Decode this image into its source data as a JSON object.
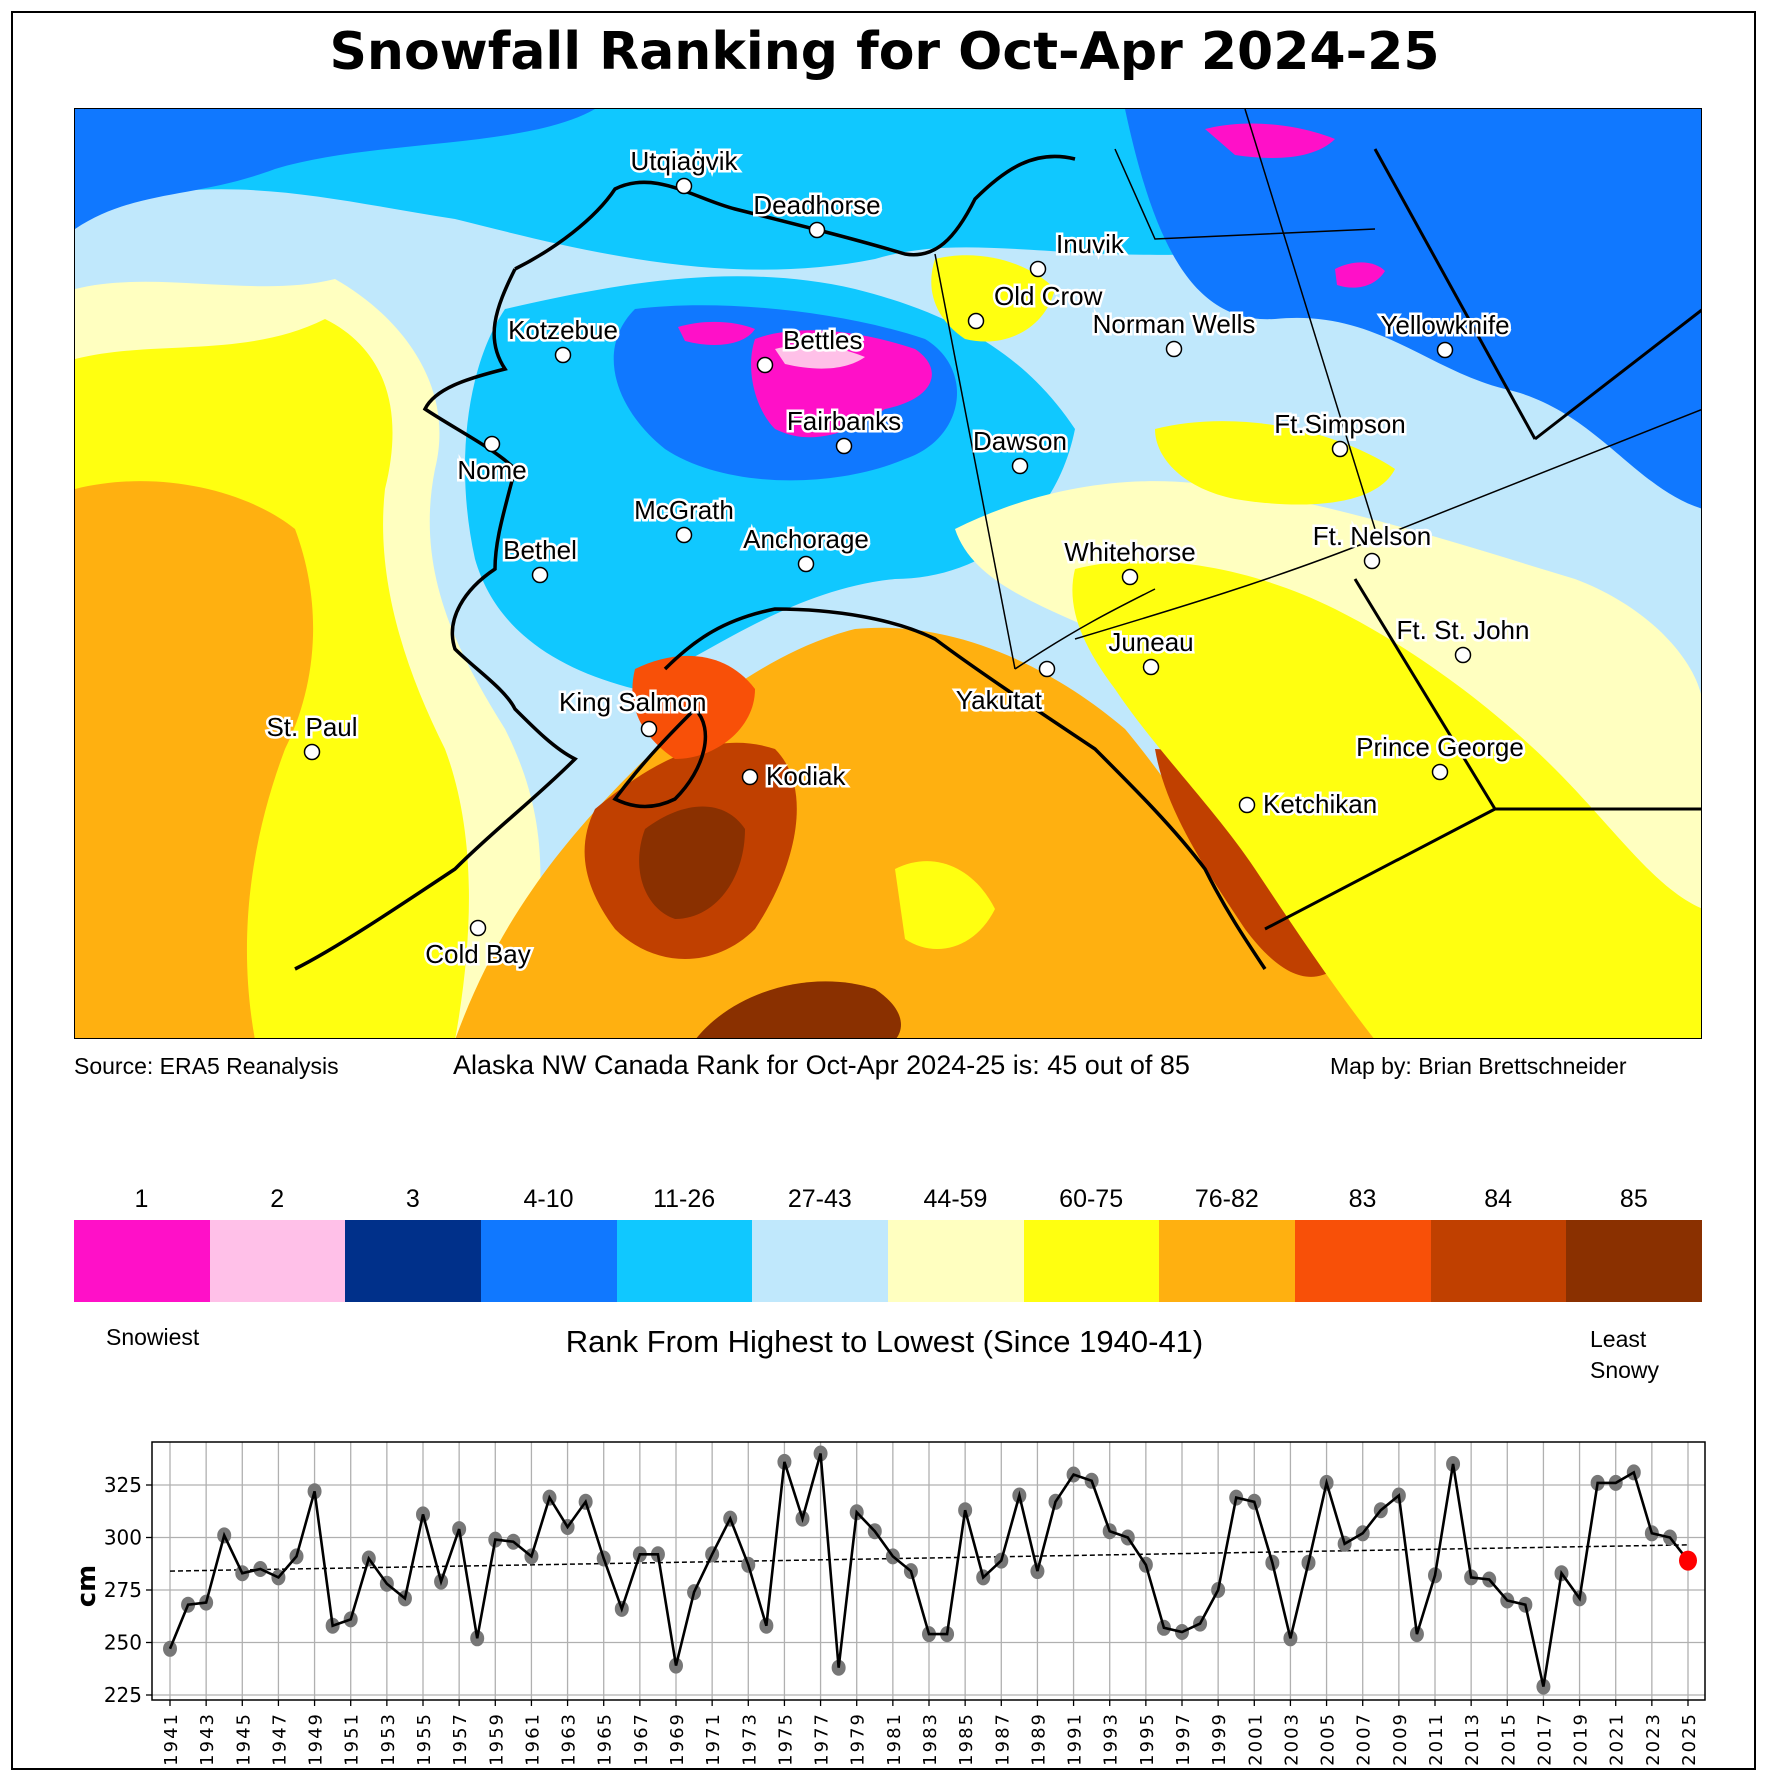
{
  "title": "Snowfall Ranking for Oct-Apr 2024-25",
  "map": {
    "cities": [
      {
        "name": "Utqiaġvik"
      },
      {
        "name": "Deadhorse"
      },
      {
        "name": "Inuvik"
      },
      {
        "name": "Kotzebue"
      },
      {
        "name": "Bettles"
      },
      {
        "name": "Old Crow"
      },
      {
        "name": "Norman Wells"
      },
      {
        "name": "Yellowknife"
      },
      {
        "name": "Fairbanks"
      },
      {
        "name": "Nome"
      },
      {
        "name": "Dawson"
      },
      {
        "name": "Ft.Simpson"
      },
      {
        "name": "McGrath"
      },
      {
        "name": "Whitehorse"
      },
      {
        "name": "Ft. Nelson"
      },
      {
        "name": "Bethel"
      },
      {
        "name": "Anchorage"
      },
      {
        "name": "Ft. St. John"
      },
      {
        "name": "Juneau"
      },
      {
        "name": "Yakutat"
      },
      {
        "name": "King Salmon"
      },
      {
        "name": "St. Paul"
      },
      {
        "name": "Kodiak"
      },
      {
        "name": "Prince George"
      },
      {
        "name": "Ketchikan"
      },
      {
        "name": "Cold Bay"
      }
    ]
  },
  "footer": {
    "source": "Source: ERA5 Reanalysis",
    "rank_text": "Alaska NW Canada Rank for Oct-Apr 2024-25 is: 45 out of 85",
    "map_by": "Map by: Brian Brettschneider"
  },
  "colorbar": {
    "bins": [
      {
        "label": "1",
        "color": "#ff10c8"
      },
      {
        "label": "2",
        "color": "#ffc0e8"
      },
      {
        "label": "3",
        "color": "#00308a"
      },
      {
        "label": "4-10",
        "color": "#1078ff"
      },
      {
        "label": "11-26",
        "color": "#10c8ff"
      },
      {
        "label": "27-43",
        "color": "#c0e8fc"
      },
      {
        "label": "44-59",
        "color": "#ffffc0"
      },
      {
        "label": "60-75",
        "color": "#ffff10"
      },
      {
        "label": "76-82",
        "color": "#ffb010"
      },
      {
        "label": "83",
        "color": "#f85008"
      },
      {
        "label": "84",
        "color": "#c04000"
      },
      {
        "label": "85",
        "color": "#8a3000"
      }
    ],
    "left_label": "Snowiest",
    "title": "Rank From Highest to Lowest (Since 1940-41)",
    "right_label_1": "Least",
    "right_label_2": "Snowy"
  },
  "chart_data": {
    "type": "line",
    "title": "",
    "xlabel": "",
    "ylabel": "cm",
    "ylim": [
      223,
      345
    ],
    "yticks": [
      225,
      250,
      275,
      300,
      325
    ],
    "xticks": [
      1941,
      1943,
      1945,
      1947,
      1949,
      1951,
      1953,
      1955,
      1957,
      1959,
      1961,
      1963,
      1965,
      1967,
      1969,
      1971,
      1973,
      1975,
      1977,
      1979,
      1981,
      1983,
      1985,
      1987,
      1989,
      1991,
      1993,
      1995,
      1997,
      1999,
      2001,
      2003,
      2005,
      2007,
      2009,
      2011,
      2013,
      2015,
      2017,
      2019,
      2021,
      2023,
      2025
    ],
    "grid": true,
    "x": [
      1941,
      1942,
      1943,
      1944,
      1945,
      1946,
      1947,
      1948,
      1949,
      1950,
      1951,
      1952,
      1953,
      1954,
      1955,
      1956,
      1957,
      1958,
      1959,
      1960,
      1961,
      1962,
      1963,
      1964,
      1965,
      1966,
      1967,
      1968,
      1969,
      1970,
      1971,
      1972,
      1973,
      1974,
      1975,
      1976,
      1977,
      1978,
      1979,
      1980,
      1981,
      1982,
      1983,
      1984,
      1985,
      1986,
      1987,
      1988,
      1989,
      1990,
      1991,
      1992,
      1993,
      1994,
      1995,
      1996,
      1997,
      1998,
      1999,
      2000,
      2001,
      2002,
      2003,
      2004,
      2005,
      2006,
      2007,
      2008,
      2009,
      2010,
      2011,
      2012,
      2013,
      2014,
      2015,
      2016,
      2017,
      2018,
      2019,
      2020,
      2021,
      2022,
      2023,
      2024,
      2025
    ],
    "series": [
      {
        "name": "snowfall",
        "values": [
          247,
          268,
          269,
          301,
          283,
          285,
          281,
          291,
          322,
          258,
          261,
          290,
          278,
          271,
          311,
          279,
          304,
          252,
          299,
          298,
          291,
          319,
          305,
          317,
          290,
          266,
          292,
          292,
          239,
          274,
          292,
          309,
          287,
          258,
          336,
          309,
          340,
          238,
          312,
          303,
          291,
          284,
          254,
          254,
          313,
          281,
          289,
          320,
          284,
          317,
          330,
          327,
          303,
          300,
          287,
          257,
          255,
          259,
          275,
          319,
          317,
          288,
          252,
          288,
          326,
          297,
          302,
          313,
          320,
          254,
          282,
          335,
          281,
          280,
          270,
          268,
          229,
          283,
          271,
          326,
          326,
          331,
          302,
          300,
          289
        ]
      },
      {
        "name": "trend",
        "values_at_ends": [
          284,
          296.5
        ]
      }
    ],
    "highlight": {
      "x": 2025,
      "value": 289,
      "color": "#ff0000"
    }
  }
}
